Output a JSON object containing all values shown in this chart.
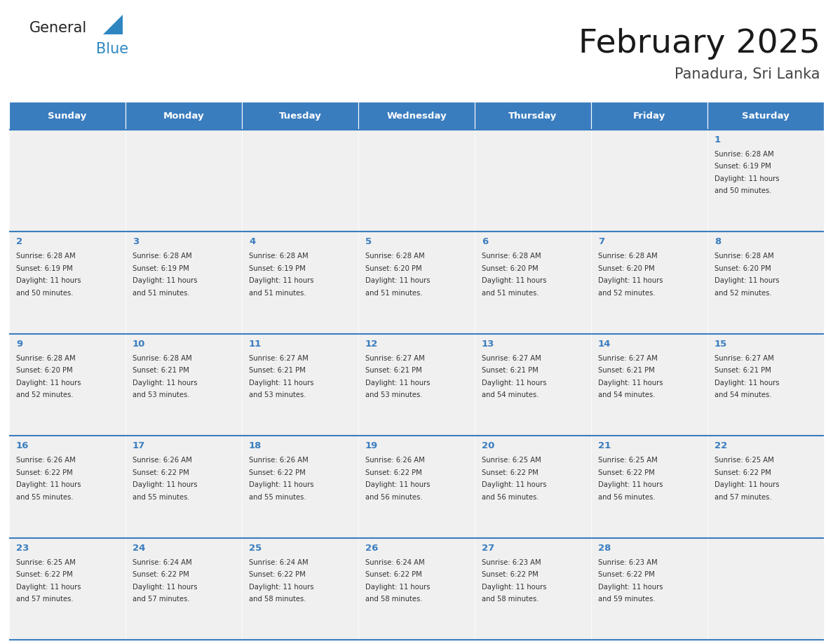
{
  "title": "February 2025",
  "subtitle": "Panadura, Sri Lanka",
  "header_color": "#3A7DBF",
  "header_text_color": "#FFFFFF",
  "day_names": [
    "Sunday",
    "Monday",
    "Tuesday",
    "Wednesday",
    "Thursday",
    "Friday",
    "Saturday"
  ],
  "background_color": "#FFFFFF",
  "cell_bg_color": "#F0F0F0",
  "cell_bg_white": "#FFFFFF",
  "cell_border_color": "#3A7DBF",
  "day_num_color": "#3A7DBF",
  "text_color": "#333333",
  "logo_color1": "#222222",
  "logo_color2": "#2E86C1",
  "logo_tri_color": "#2E86C1",
  "calendar_data": [
    [
      null,
      null,
      null,
      null,
      null,
      null,
      {
        "day": 1,
        "sunrise": "6:28 AM",
        "sunset": "6:19 PM",
        "daylight": "11 hours\nand 50 minutes."
      }
    ],
    [
      {
        "day": 2,
        "sunrise": "6:28 AM",
        "sunset": "6:19 PM",
        "daylight": "11 hours\nand 50 minutes."
      },
      {
        "day": 3,
        "sunrise": "6:28 AM",
        "sunset": "6:19 PM",
        "daylight": "11 hours\nand 51 minutes."
      },
      {
        "day": 4,
        "sunrise": "6:28 AM",
        "sunset": "6:19 PM",
        "daylight": "11 hours\nand 51 minutes."
      },
      {
        "day": 5,
        "sunrise": "6:28 AM",
        "sunset": "6:20 PM",
        "daylight": "11 hours\nand 51 minutes."
      },
      {
        "day": 6,
        "sunrise": "6:28 AM",
        "sunset": "6:20 PM",
        "daylight": "11 hours\nand 51 minutes."
      },
      {
        "day": 7,
        "sunrise": "6:28 AM",
        "sunset": "6:20 PM",
        "daylight": "11 hours\nand 52 minutes."
      },
      {
        "day": 8,
        "sunrise": "6:28 AM",
        "sunset": "6:20 PM",
        "daylight": "11 hours\nand 52 minutes."
      }
    ],
    [
      {
        "day": 9,
        "sunrise": "6:28 AM",
        "sunset": "6:20 PM",
        "daylight": "11 hours\nand 52 minutes."
      },
      {
        "day": 10,
        "sunrise": "6:28 AM",
        "sunset": "6:21 PM",
        "daylight": "11 hours\nand 53 minutes."
      },
      {
        "day": 11,
        "sunrise": "6:27 AM",
        "sunset": "6:21 PM",
        "daylight": "11 hours\nand 53 minutes."
      },
      {
        "day": 12,
        "sunrise": "6:27 AM",
        "sunset": "6:21 PM",
        "daylight": "11 hours\nand 53 minutes."
      },
      {
        "day": 13,
        "sunrise": "6:27 AM",
        "sunset": "6:21 PM",
        "daylight": "11 hours\nand 54 minutes."
      },
      {
        "day": 14,
        "sunrise": "6:27 AM",
        "sunset": "6:21 PM",
        "daylight": "11 hours\nand 54 minutes."
      },
      {
        "day": 15,
        "sunrise": "6:27 AM",
        "sunset": "6:21 PM",
        "daylight": "11 hours\nand 54 minutes."
      }
    ],
    [
      {
        "day": 16,
        "sunrise": "6:26 AM",
        "sunset": "6:22 PM",
        "daylight": "11 hours\nand 55 minutes."
      },
      {
        "day": 17,
        "sunrise": "6:26 AM",
        "sunset": "6:22 PM",
        "daylight": "11 hours\nand 55 minutes."
      },
      {
        "day": 18,
        "sunrise": "6:26 AM",
        "sunset": "6:22 PM",
        "daylight": "11 hours\nand 55 minutes."
      },
      {
        "day": 19,
        "sunrise": "6:26 AM",
        "sunset": "6:22 PM",
        "daylight": "11 hours\nand 56 minutes."
      },
      {
        "day": 20,
        "sunrise": "6:25 AM",
        "sunset": "6:22 PM",
        "daylight": "11 hours\nand 56 minutes."
      },
      {
        "day": 21,
        "sunrise": "6:25 AM",
        "sunset": "6:22 PM",
        "daylight": "11 hours\nand 56 minutes."
      },
      {
        "day": 22,
        "sunrise": "6:25 AM",
        "sunset": "6:22 PM",
        "daylight": "11 hours\nand 57 minutes."
      }
    ],
    [
      {
        "day": 23,
        "sunrise": "6:25 AM",
        "sunset": "6:22 PM",
        "daylight": "11 hours\nand 57 minutes."
      },
      {
        "day": 24,
        "sunrise": "6:24 AM",
        "sunset": "6:22 PM",
        "daylight": "11 hours\nand 57 minutes."
      },
      {
        "day": 25,
        "sunrise": "6:24 AM",
        "sunset": "6:22 PM",
        "daylight": "11 hours\nand 58 minutes."
      },
      {
        "day": 26,
        "sunrise": "6:24 AM",
        "sunset": "6:22 PM",
        "daylight": "11 hours\nand 58 minutes."
      },
      {
        "day": 27,
        "sunrise": "6:23 AM",
        "sunset": "6:22 PM",
        "daylight": "11 hours\nand 58 minutes."
      },
      {
        "day": 28,
        "sunrise": "6:23 AM",
        "sunset": "6:22 PM",
        "daylight": "11 hours\nand 59 minutes."
      },
      null
    ]
  ]
}
